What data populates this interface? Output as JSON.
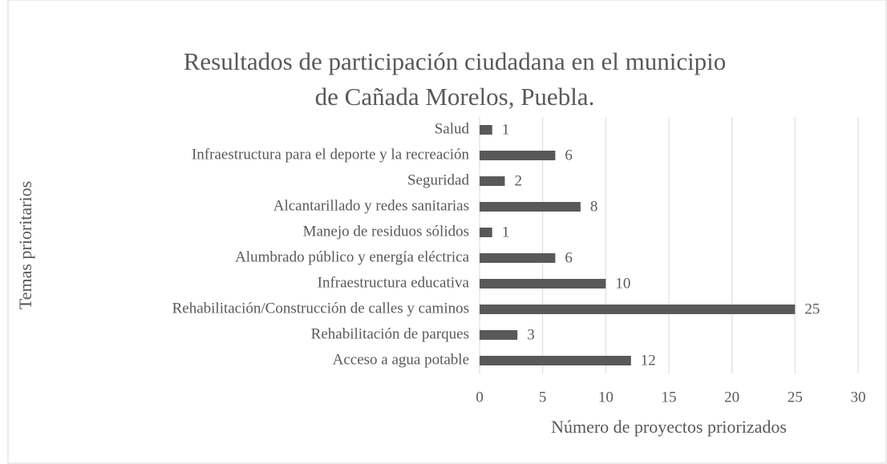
{
  "chart_data": {
    "type": "barh",
    "title": "Resultados de participación ciudadana en el municipio de Cañada Morelos, Puebla.",
    "xlabel": "Número de proyectos priorizados",
    "ylabel": "Temas prioritarios",
    "categories": [
      "Salud",
      "Infraestructura para el deporte y la recreación",
      "Seguridad",
      "Alcantarillado y redes sanitarias",
      "Manejo de residuos sólidos",
      "Alumbrado público y energía eléctrica",
      "Infraestructura educativa",
      "Rehabilitación/Construcción de calles y caminos",
      "Rehabilitación de parques",
      "Acceso a agua potable"
    ],
    "values": [
      1,
      6,
      2,
      8,
      1,
      6,
      10,
      25,
      3,
      12
    ],
    "color": "#595959",
    "xlim": [
      0,
      30
    ],
    "xticks": [
      0,
      5,
      10,
      15,
      20,
      25,
      30
    ],
    "grid": true
  }
}
